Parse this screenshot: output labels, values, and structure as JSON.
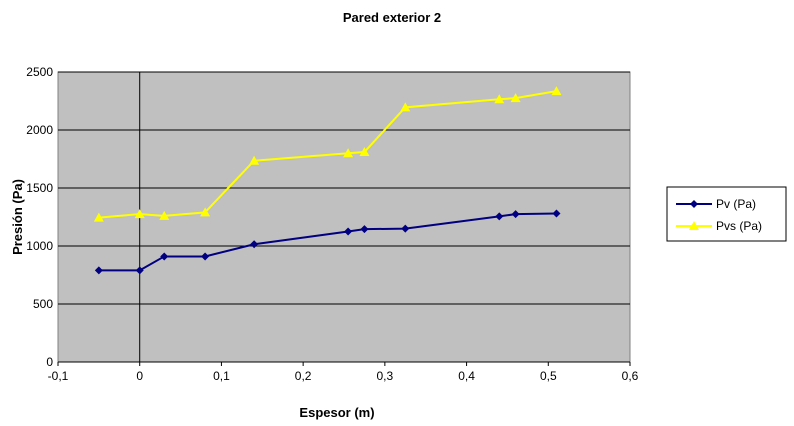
{
  "chart_data": {
    "type": "line",
    "title": "Pared exterior 2",
    "xlabel": "Espesor (m)",
    "ylabel": "Presión (Pa)",
    "xlim": [
      -0.1,
      0.6
    ],
    "ylim": [
      0,
      2500
    ],
    "x_ticks": [
      "-0,1",
      "0",
      "0,1",
      "0,2",
      "0,3",
      "0,4",
      "0,5",
      "0,6"
    ],
    "y_ticks": [
      "0",
      "500",
      "1000",
      "1500",
      "2000",
      "2500"
    ],
    "grid": "horizontal",
    "legend_position": "right",
    "plot_background": "#c0c0c0",
    "series": [
      {
        "name": "Pv (Pa)",
        "color": "#000080",
        "marker": "diamond",
        "x": [
          -0.05,
          0.0,
          0.03,
          0.08,
          0.14,
          0.255,
          0.275,
          0.325,
          0.44,
          0.46,
          0.51
        ],
        "y": [
          790,
          790,
          910,
          910,
          1015,
          1125,
          1145,
          1150,
          1255,
          1275,
          1280
        ]
      },
      {
        "name": "Pvs (Pa)",
        "color": "#ffff00",
        "marker": "triangle",
        "x": [
          -0.05,
          0.0,
          0.03,
          0.08,
          0.14,
          0.255,
          0.275,
          0.325,
          0.44,
          0.46,
          0.51
        ],
        "y": [
          1245,
          1275,
          1260,
          1290,
          1735,
          1800,
          1810,
          2195,
          2265,
          2275,
          2335
        ]
      }
    ]
  }
}
